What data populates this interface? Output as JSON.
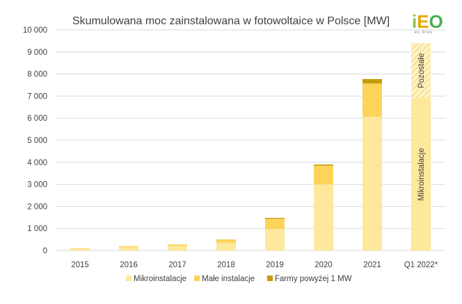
{
  "chart_data": {
    "type": "bar",
    "stacked": true,
    "title": "Skumulowana moc zainstalowana w fotowoltaice w Polsce [MW]",
    "xlabel": "",
    "ylabel": "",
    "ylim": [
      0,
      10000
    ],
    "yticks": [
      0,
      1000,
      2000,
      3000,
      4000,
      5000,
      6000,
      7000,
      8000,
      9000,
      10000
    ],
    "ytick_labels": [
      "0",
      "1 000",
      "2 000",
      "3 000",
      "4 000",
      "5 000",
      "6 000",
      "7 000",
      "8 000",
      "9 000",
      "10 000"
    ],
    "grid": true,
    "legend_position": "bottom",
    "categories": [
      "2015",
      "2016",
      "2017",
      "2018",
      "2019",
      "2020",
      "2021",
      "Q1 2022*"
    ],
    "series": [
      {
        "name": "Mikroinstalacje",
        "color": "#fde89b",
        "values": [
          70,
          150,
          220,
          360,
          980,
          3000,
          6070,
          6900
        ]
      },
      {
        "name": "Małe instalacje",
        "color": "#fdd35a",
        "values": [
          30,
          50,
          60,
          130,
          460,
          850,
          1500,
          0
        ]
      },
      {
        "name": "Farmy powyżej 1 MW",
        "color": "#c49a06",
        "values": [
          0,
          0,
          0,
          10,
          40,
          50,
          200,
          0
        ]
      }
    ],
    "extra_segment": {
      "category": "Q1 2022*",
      "name": "Pozostałe",
      "value": 2500,
      "pattern": "hatched"
    },
    "annotations": {
      "mikro_label": "Mikroinstalacje",
      "pozostale_label": "Pozostałe"
    }
  },
  "logo": {
    "text": "iEO",
    "subtext": "ec brec"
  },
  "colors": {
    "grid": "#d9d9d9",
    "text": "#404040",
    "hatch_bg": "#fff3c4",
    "hatch_line": "#f5d77a",
    "logo_i": "#8bc34a",
    "logo_e": "#e6a800",
    "logo_o": "#4caf50"
  }
}
